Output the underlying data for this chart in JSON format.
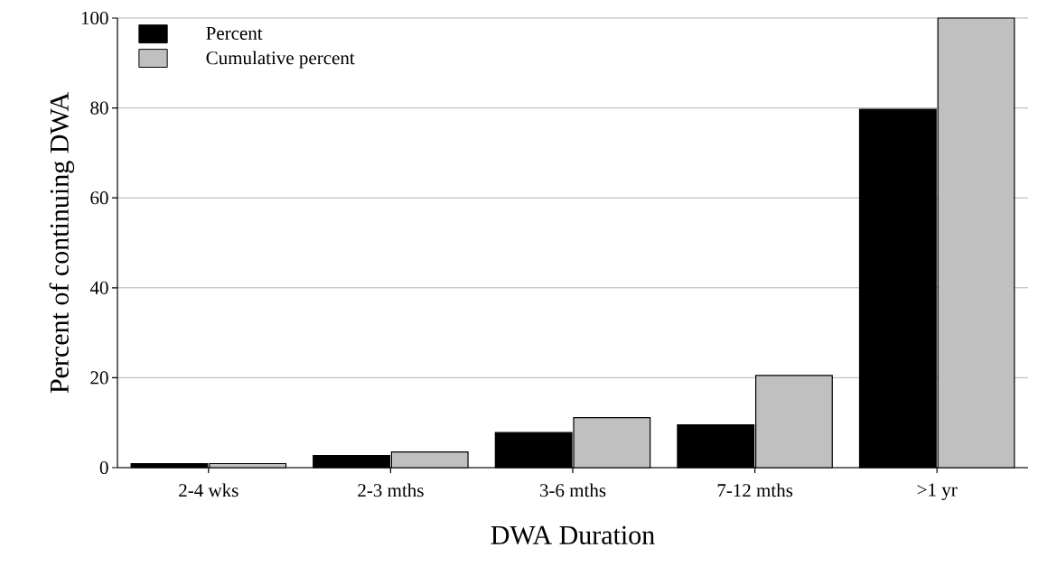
{
  "chart_data": {
    "type": "bar",
    "xlabel": "DWA Duration",
    "ylabel": "Percent of continuing DWA",
    "categories": [
      "2-4 wks",
      "2-3 mths",
      "3-6 mths",
      "7-12 mths",
      ">1 yr"
    ],
    "series": [
      {
        "name": "Percent",
        "color": "#000000",
        "values": [
          0.9,
          2.7,
          7.8,
          9.5,
          79.7
        ]
      },
      {
        "name": "Cumulative percent",
        "color": "#c0c0c0",
        "values": [
          0.9,
          3.5,
          11.1,
          20.5,
          100
        ]
      }
    ],
    "ylim": [
      0,
      100
    ],
    "yticks": [
      0,
      20,
      40,
      60,
      80,
      100
    ],
    "grid": "y",
    "legend": "top left"
  }
}
